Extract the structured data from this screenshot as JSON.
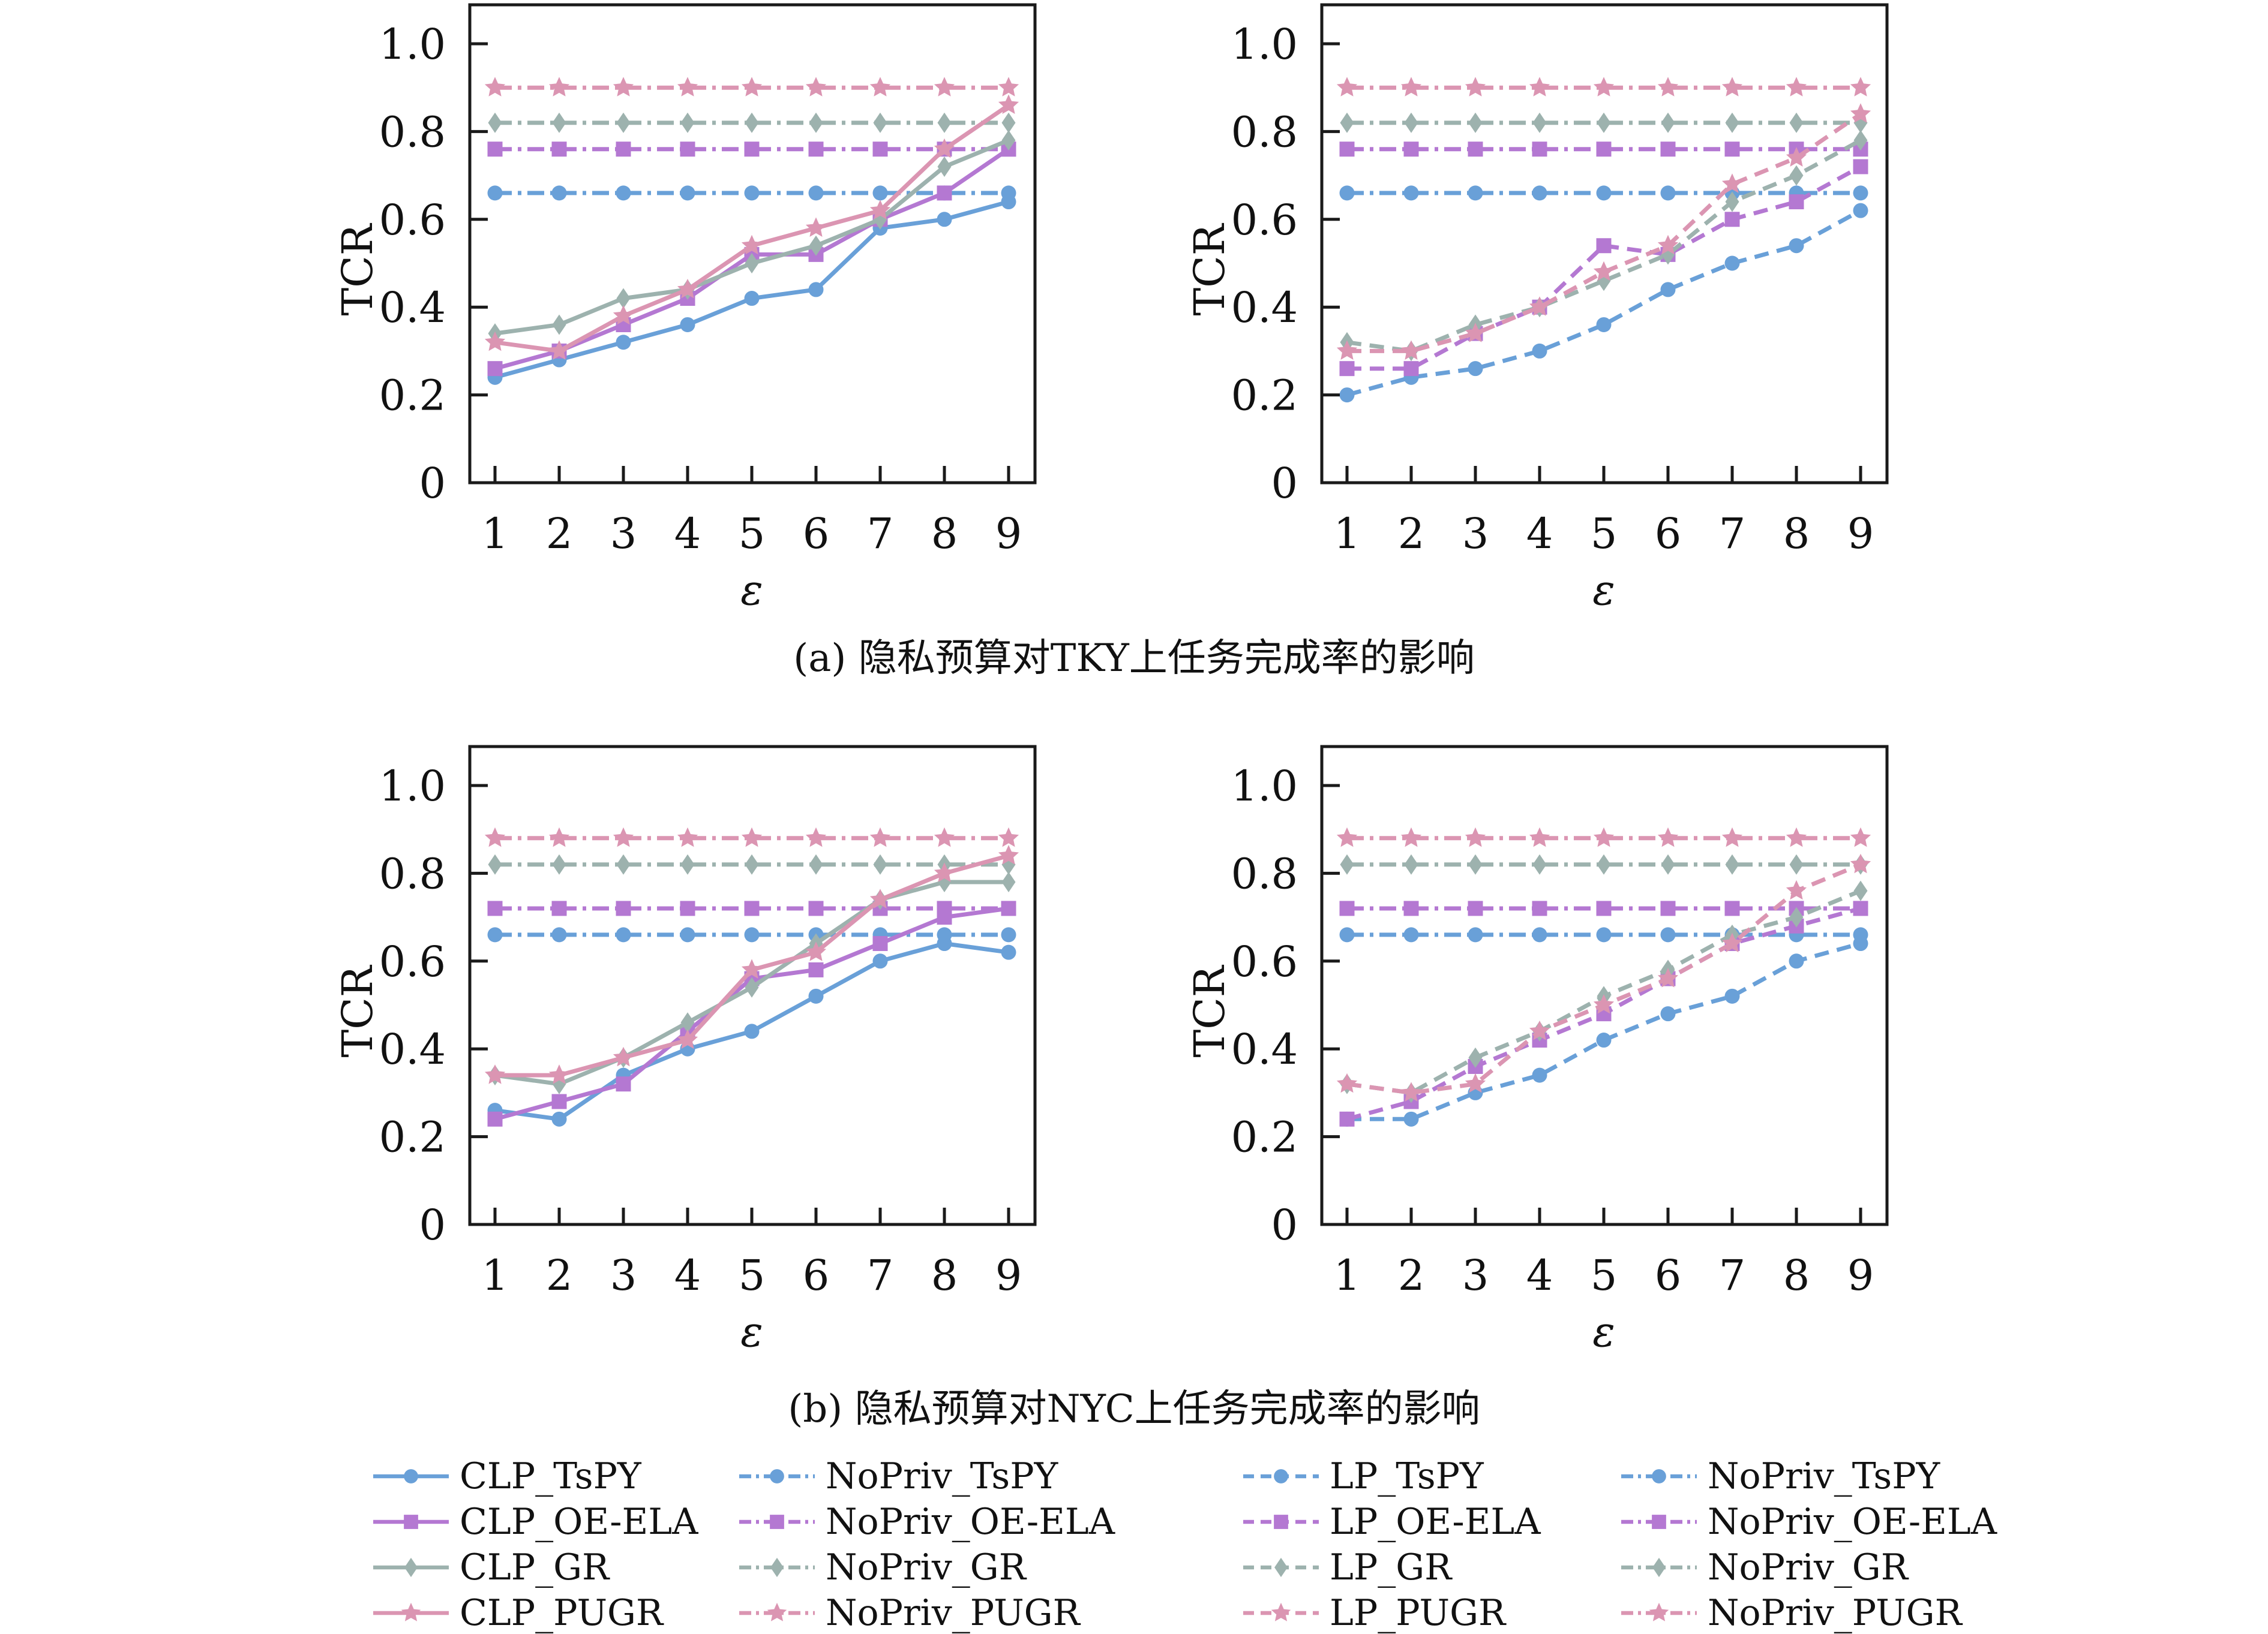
{
  "figure": {
    "caption_a": "(a) 隐私预算对TKY上任务完成率的影响",
    "caption_b": "(b) 隐私预算对NYC上任务完成率的影响"
  },
  "palette": {
    "blue": "#69A0D8",
    "purple": "#B478D2",
    "gray": "#9DB2AE",
    "pink": "#DB95B2",
    "axis": "#1a1a1a"
  },
  "chart_data": [
    {
      "id": "tky-clp",
      "type": "line",
      "dataset": "TKY",
      "group": "CLP vs NoPriv",
      "xlabel": "ε",
      "ylabel": "TCR",
      "x": [
        1,
        2,
        3,
        4,
        5,
        6,
        7,
        8,
        9
      ],
      "ylim": [
        0,
        1.09
      ],
      "yticks": [
        0,
        0.2,
        0.4,
        0.6,
        0.8,
        1.0
      ],
      "ytick_labels": [
        "0",
        "0.2",
        "0.4",
        "0.6",
        "0.8",
        "1.0"
      ],
      "grid": false,
      "series": [
        {
          "name": "NoPriv_TsPY",
          "color": "blue",
          "marker": "circle",
          "linestyle": "dashdot",
          "values": [
            0.66,
            0.66,
            0.66,
            0.66,
            0.66,
            0.66,
            0.66,
            0.66,
            0.66
          ]
        },
        {
          "name": "NoPriv_OE-ELA",
          "color": "purple",
          "marker": "square",
          "linestyle": "dashdot",
          "values": [
            0.76,
            0.76,
            0.76,
            0.76,
            0.76,
            0.76,
            0.76,
            0.76,
            0.76
          ]
        },
        {
          "name": "NoPriv_GR",
          "color": "gray",
          "marker": "diamond",
          "linestyle": "dashdot",
          "values": [
            0.82,
            0.82,
            0.82,
            0.82,
            0.82,
            0.82,
            0.82,
            0.82,
            0.82
          ]
        },
        {
          "name": "NoPriv_PUGR",
          "color": "pink",
          "marker": "star",
          "linestyle": "dashdot",
          "values": [
            0.9,
            0.9,
            0.9,
            0.9,
            0.9,
            0.9,
            0.9,
            0.9,
            0.9
          ]
        },
        {
          "name": "CLP_TsPY",
          "color": "blue",
          "marker": "circle",
          "linestyle": "solid",
          "values": [
            0.24,
            0.28,
            0.32,
            0.36,
            0.42,
            0.44,
            0.58,
            0.6,
            0.64
          ]
        },
        {
          "name": "CLP_OE-ELA",
          "color": "purple",
          "marker": "square",
          "linestyle": "solid",
          "values": [
            0.26,
            0.3,
            0.36,
            0.42,
            0.52,
            0.52,
            0.6,
            0.66,
            0.76
          ]
        },
        {
          "name": "CLP_GR",
          "color": "gray",
          "marker": "diamond",
          "linestyle": "solid",
          "values": [
            0.34,
            0.36,
            0.42,
            0.44,
            0.5,
            0.54,
            0.6,
            0.72,
            0.78
          ]
        },
        {
          "name": "CLP_PUGR",
          "color": "pink",
          "marker": "star",
          "linestyle": "solid",
          "values": [
            0.32,
            0.3,
            0.38,
            0.44,
            0.54,
            0.58,
            0.62,
            0.76,
            0.86
          ]
        }
      ]
    },
    {
      "id": "tky-lp",
      "type": "line",
      "dataset": "TKY",
      "group": "LP vs NoPriv",
      "xlabel": "ε",
      "ylabel": "TCR",
      "x": [
        1,
        2,
        3,
        4,
        5,
        6,
        7,
        8,
        9
      ],
      "ylim": [
        0,
        1.09
      ],
      "yticks": [
        0,
        0.2,
        0.4,
        0.6,
        0.8,
        1.0
      ],
      "ytick_labels": [
        "0",
        "0.2",
        "0.4",
        "0.6",
        "0.8",
        "1.0"
      ],
      "grid": false,
      "series": [
        {
          "name": "NoPriv_TsPY",
          "color": "blue",
          "marker": "circle",
          "linestyle": "dashdot",
          "values": [
            0.66,
            0.66,
            0.66,
            0.66,
            0.66,
            0.66,
            0.66,
            0.66,
            0.66
          ]
        },
        {
          "name": "NoPriv_OE-ELA",
          "color": "purple",
          "marker": "square",
          "linestyle": "dashdot",
          "values": [
            0.76,
            0.76,
            0.76,
            0.76,
            0.76,
            0.76,
            0.76,
            0.76,
            0.76
          ]
        },
        {
          "name": "NoPriv_GR",
          "color": "gray",
          "marker": "diamond",
          "linestyle": "dashdot",
          "values": [
            0.82,
            0.82,
            0.82,
            0.82,
            0.82,
            0.82,
            0.82,
            0.82,
            0.82
          ]
        },
        {
          "name": "NoPriv_PUGR",
          "color": "pink",
          "marker": "star",
          "linestyle": "dashdot",
          "values": [
            0.9,
            0.9,
            0.9,
            0.9,
            0.9,
            0.9,
            0.9,
            0.9,
            0.9
          ]
        },
        {
          "name": "LP_TsPY",
          "color": "blue",
          "marker": "circle",
          "linestyle": "dashed",
          "values": [
            0.2,
            0.24,
            0.26,
            0.3,
            0.36,
            0.44,
            0.5,
            0.54,
            0.62
          ]
        },
        {
          "name": "LP_OE-ELA",
          "color": "purple",
          "marker": "square",
          "linestyle": "dashed",
          "values": [
            0.26,
            0.26,
            0.34,
            0.4,
            0.54,
            0.52,
            0.6,
            0.64,
            0.72
          ]
        },
        {
          "name": "LP_GR",
          "color": "gray",
          "marker": "diamond",
          "linestyle": "dashed",
          "values": [
            0.32,
            0.3,
            0.36,
            0.4,
            0.46,
            0.52,
            0.64,
            0.7,
            0.78
          ]
        },
        {
          "name": "LP_PUGR",
          "color": "pink",
          "marker": "star",
          "linestyle": "dashed",
          "values": [
            0.3,
            0.3,
            0.34,
            0.4,
            0.48,
            0.54,
            0.68,
            0.74,
            0.84
          ]
        }
      ]
    },
    {
      "id": "nyc-clp",
      "type": "line",
      "dataset": "NYC",
      "group": "CLP vs NoPriv",
      "xlabel": "ε",
      "ylabel": "TCR",
      "x": [
        1,
        2,
        3,
        4,
        5,
        6,
        7,
        8,
        9
      ],
      "ylim": [
        0,
        1.09
      ],
      "yticks": [
        0,
        0.2,
        0.4,
        0.6,
        0.8,
        1.0
      ],
      "ytick_labels": [
        "0",
        "0.2",
        "0.4",
        "0.6",
        "0.8",
        "1.0"
      ],
      "grid": false,
      "series": [
        {
          "name": "NoPriv_TsPY",
          "color": "blue",
          "marker": "circle",
          "linestyle": "dashdot",
          "values": [
            0.66,
            0.66,
            0.66,
            0.66,
            0.66,
            0.66,
            0.66,
            0.66,
            0.66
          ]
        },
        {
          "name": "NoPriv_OE-ELA",
          "color": "purple",
          "marker": "square",
          "linestyle": "dashdot",
          "values": [
            0.72,
            0.72,
            0.72,
            0.72,
            0.72,
            0.72,
            0.72,
            0.72,
            0.72
          ]
        },
        {
          "name": "NoPriv_GR",
          "color": "gray",
          "marker": "diamond",
          "linestyle": "dashdot",
          "values": [
            0.82,
            0.82,
            0.82,
            0.82,
            0.82,
            0.82,
            0.82,
            0.82,
            0.82
          ]
        },
        {
          "name": "NoPriv_PUGR",
          "color": "pink",
          "marker": "star",
          "linestyle": "dashdot",
          "values": [
            0.88,
            0.88,
            0.88,
            0.88,
            0.88,
            0.88,
            0.88,
            0.88,
            0.88
          ]
        },
        {
          "name": "CLP_TsPY",
          "color": "blue",
          "marker": "circle",
          "linestyle": "solid",
          "values": [
            0.26,
            0.24,
            0.34,
            0.4,
            0.44,
            0.52,
            0.6,
            0.64,
            0.62
          ]
        },
        {
          "name": "CLP_OE-ELA",
          "color": "purple",
          "marker": "square",
          "linestyle": "solid",
          "values": [
            0.24,
            0.28,
            0.32,
            0.44,
            0.56,
            0.58,
            0.64,
            0.7,
            0.72
          ]
        },
        {
          "name": "CLP_GR",
          "color": "gray",
          "marker": "diamond",
          "linestyle": "solid",
          "values": [
            0.34,
            0.32,
            0.38,
            0.46,
            0.54,
            0.64,
            0.74,
            0.78,
            0.78
          ]
        },
        {
          "name": "CLP_PUGR",
          "color": "pink",
          "marker": "star",
          "linestyle": "solid",
          "values": [
            0.34,
            0.34,
            0.38,
            0.42,
            0.58,
            0.62,
            0.74,
            0.8,
            0.84
          ]
        }
      ]
    },
    {
      "id": "nyc-lp",
      "type": "line",
      "dataset": "NYC",
      "group": "LP vs NoPriv",
      "xlabel": "ε",
      "ylabel": "TCR",
      "x": [
        1,
        2,
        3,
        4,
        5,
        6,
        7,
        8,
        9
      ],
      "ylim": [
        0,
        1.09
      ],
      "yticks": [
        0,
        0.2,
        0.4,
        0.6,
        0.8,
        1.0
      ],
      "ytick_labels": [
        "0",
        "0.2",
        "0.4",
        "0.6",
        "0.8",
        "1.0"
      ],
      "grid": false,
      "series": [
        {
          "name": "NoPriv_TsPY",
          "color": "blue",
          "marker": "circle",
          "linestyle": "dashdot",
          "values": [
            0.66,
            0.66,
            0.66,
            0.66,
            0.66,
            0.66,
            0.66,
            0.66,
            0.66
          ]
        },
        {
          "name": "NoPriv_OE-ELA",
          "color": "purple",
          "marker": "square",
          "linestyle": "dashdot",
          "values": [
            0.72,
            0.72,
            0.72,
            0.72,
            0.72,
            0.72,
            0.72,
            0.72,
            0.72
          ]
        },
        {
          "name": "NoPriv_GR",
          "color": "gray",
          "marker": "diamond",
          "linestyle": "dashdot",
          "values": [
            0.82,
            0.82,
            0.82,
            0.82,
            0.82,
            0.82,
            0.82,
            0.82,
            0.82
          ]
        },
        {
          "name": "NoPriv_PUGR",
          "color": "pink",
          "marker": "star",
          "linestyle": "dashdot",
          "values": [
            0.88,
            0.88,
            0.88,
            0.88,
            0.88,
            0.88,
            0.88,
            0.88,
            0.88
          ]
        },
        {
          "name": "LP_TsPY",
          "color": "blue",
          "marker": "circle",
          "linestyle": "dashed",
          "values": [
            0.24,
            0.24,
            0.3,
            0.34,
            0.42,
            0.48,
            0.52,
            0.6,
            0.64
          ]
        },
        {
          "name": "LP_OE-ELA",
          "color": "purple",
          "marker": "square",
          "linestyle": "dashed",
          "values": [
            0.24,
            0.28,
            0.36,
            0.42,
            0.48,
            0.56,
            0.64,
            0.68,
            0.72
          ]
        },
        {
          "name": "LP_GR",
          "color": "gray",
          "marker": "diamond",
          "linestyle": "dashed",
          "values": [
            0.32,
            0.3,
            0.38,
            0.44,
            0.52,
            0.58,
            0.66,
            0.7,
            0.76
          ]
        },
        {
          "name": "LP_PUGR",
          "color": "pink",
          "marker": "star",
          "linestyle": "dashed",
          "values": [
            0.32,
            0.3,
            0.32,
            0.44,
            0.5,
            0.56,
            0.64,
            0.76,
            0.82
          ]
        }
      ]
    }
  ],
  "legend": {
    "position": "bottom",
    "columns": [
      {
        "linestyle": "solid",
        "items": [
          {
            "label": "CLP_TsPY",
            "marker": "circle",
            "color": "blue"
          },
          {
            "label": "CLP_OE-ELA",
            "marker": "square",
            "color": "purple"
          },
          {
            "label": "CLP_GR",
            "marker": "diamond",
            "color": "gray"
          },
          {
            "label": "CLP_PUGR",
            "marker": "star",
            "color": "pink"
          }
        ]
      },
      {
        "linestyle": "dashdot",
        "items": [
          {
            "label": "NoPriv_TsPY",
            "marker": "circle",
            "color": "blue"
          },
          {
            "label": "NoPriv_OE-ELA",
            "marker": "square",
            "color": "purple"
          },
          {
            "label": "NoPriv_GR",
            "marker": "diamond",
            "color": "gray"
          },
          {
            "label": "NoPriv_PUGR",
            "marker": "star",
            "color": "pink"
          }
        ]
      },
      {
        "linestyle": "dashed",
        "items": [
          {
            "label": "LP_TsPY",
            "marker": "circle",
            "color": "blue"
          },
          {
            "label": "LP_OE-ELA",
            "marker": "square",
            "color": "purple"
          },
          {
            "label": "LP_GR",
            "marker": "diamond",
            "color": "gray"
          },
          {
            "label": "LP_PUGR",
            "marker": "star",
            "color": "pink"
          }
        ]
      },
      {
        "linestyle": "dashdot",
        "items": [
          {
            "label": "NoPriv_TsPY",
            "marker": "circle",
            "color": "blue"
          },
          {
            "label": "NoPriv_OE-ELA",
            "marker": "square",
            "color": "purple"
          },
          {
            "label": "NoPriv_GR",
            "marker": "diamond",
            "color": "gray"
          },
          {
            "label": "NoPriv_PUGR",
            "marker": "star",
            "color": "pink"
          }
        ]
      }
    ]
  }
}
